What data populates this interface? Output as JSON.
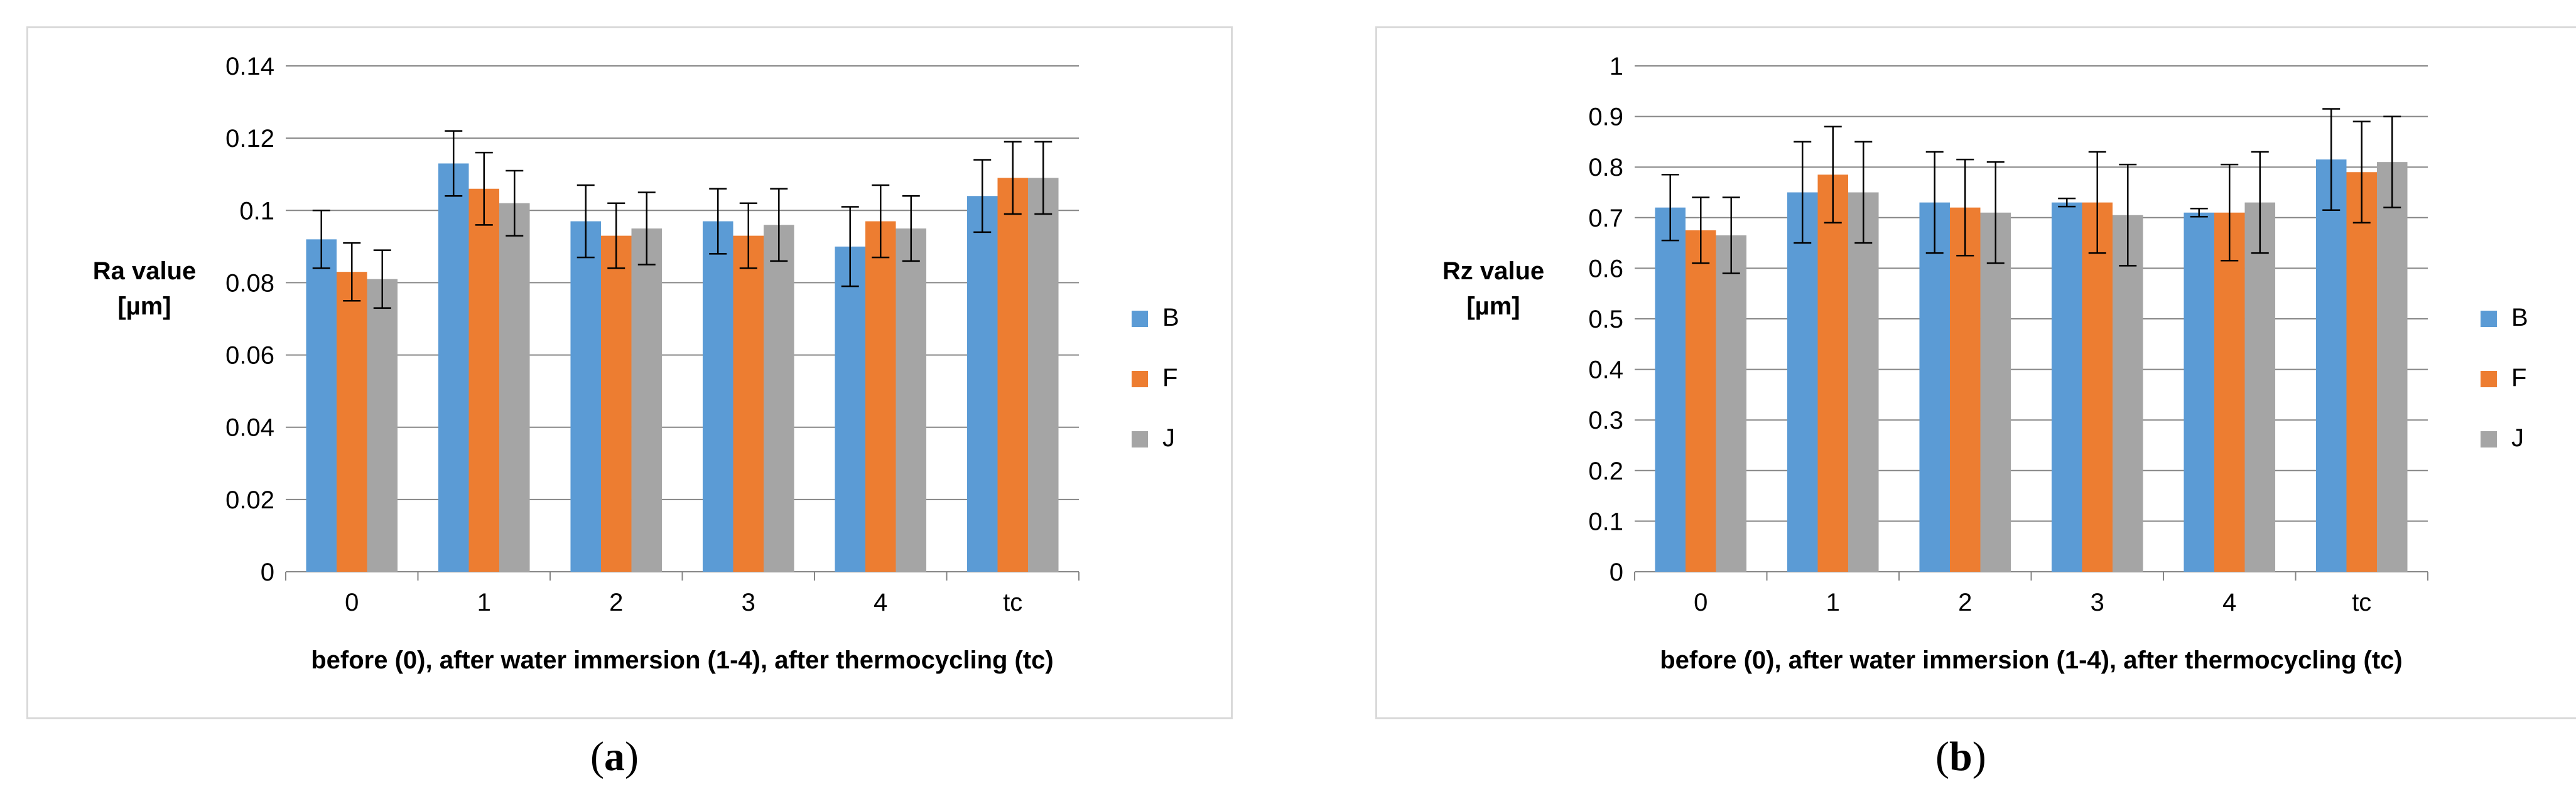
{
  "colors": {
    "B": "#5b9bd5",
    "F": "#ed7d31",
    "J": "#a5a5a5",
    "grid": "#868686",
    "axis": "#868686",
    "text": "#000000"
  },
  "chart_data": [
    {
      "type": "bar",
      "panel_label": "a",
      "title": "",
      "xlabel": "before (0), after water immersion (1-4), after thermocycling (tc)",
      "ylabel_lines": [
        "Ra value",
        "[µm]"
      ],
      "categories": [
        "0",
        "1",
        "2",
        "3",
        "4",
        "tc"
      ],
      "ylim": [
        0,
        0.14
      ],
      "yticks": [
        "0",
        "0.02",
        "0.04",
        "0.06",
        "0.08",
        "0.1",
        "0.12",
        "0.14"
      ],
      "grid": true,
      "legend_position": "right",
      "series": [
        {
          "name": "B",
          "values": [
            0.092,
            0.113,
            0.097,
            0.097,
            0.09,
            0.104
          ],
          "errors": [
            0.008,
            0.009,
            0.01,
            0.009,
            0.011,
            0.01
          ]
        },
        {
          "name": "F",
          "values": [
            0.083,
            0.106,
            0.093,
            0.093,
            0.097,
            0.109
          ],
          "errors": [
            0.008,
            0.01,
            0.009,
            0.009,
            0.01,
            0.01
          ]
        },
        {
          "name": "J",
          "values": [
            0.081,
            0.102,
            0.095,
            0.096,
            0.095,
            0.109
          ],
          "errors": [
            0.008,
            0.009,
            0.01,
            0.01,
            0.009,
            0.01
          ]
        }
      ]
    },
    {
      "type": "bar",
      "panel_label": "b",
      "title": "",
      "xlabel": "before (0), after water immersion (1-4), after thermocycling (tc)",
      "ylabel_lines": [
        "Rz value",
        "[µm]"
      ],
      "categories": [
        "0",
        "1",
        "2",
        "3",
        "4",
        "tc"
      ],
      "ylim": [
        0,
        1
      ],
      "yticks": [
        "0",
        "0.1",
        "0.2",
        "0.3",
        "0.4",
        "0.5",
        "0.6",
        "0.7",
        "0.8",
        "0.9",
        "1"
      ],
      "grid": true,
      "legend_position": "right",
      "series": [
        {
          "name": "B",
          "values": [
            0.72,
            0.75,
            0.73,
            0.73,
            0.71,
            0.815
          ],
          "errors": [
            0.065,
            0.1,
            0.1,
            0.008,
            0.008,
            0.1
          ]
        },
        {
          "name": "F",
          "values": [
            0.675,
            0.785,
            0.72,
            0.73,
            0.71,
            0.79
          ],
          "errors": [
            0.065,
            0.095,
            0.095,
            0.1,
            0.095,
            0.1
          ]
        },
        {
          "name": "J",
          "values": [
            0.665,
            0.75,
            0.71,
            0.705,
            0.73,
            0.81
          ],
          "errors": [
            0.075,
            0.1,
            0.1,
            0.1,
            0.1,
            0.09
          ]
        }
      ]
    }
  ]
}
